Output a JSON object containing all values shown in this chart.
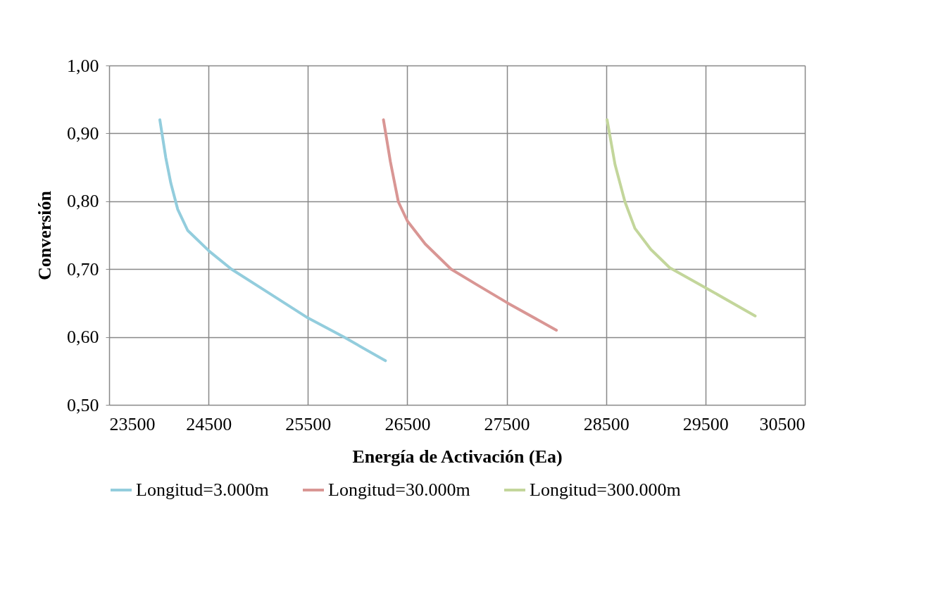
{
  "chart_data": {
    "type": "line",
    "xlabel": "Energía de Activación (Ea)",
    "ylabel": "Conversión",
    "xlim": [
      23500,
      30500
    ],
    "xticks": [
      23500,
      24500,
      25500,
      26500,
      27500,
      28500,
      29500,
      30500
    ],
    "ylim": [
      0.5,
      1.0
    ],
    "yticks": [
      {
        "value": 0.5,
        "label": "0,50"
      },
      {
        "value": 0.6,
        "label": "0,60"
      },
      {
        "value": 0.7,
        "label": "0,70"
      },
      {
        "value": 0.8,
        "label": "0,80"
      },
      {
        "value": 0.9,
        "label": "0,90"
      },
      {
        "value": 1.0,
        "label": "1,00"
      }
    ],
    "grid": true,
    "legend": "bottom",
    "marker": "none",
    "line_style": "solid",
    "series": [
      {
        "name": "Longitud=3.000m",
        "color": "#93cddd",
        "x": [
          24010,
          24070,
          24120,
          24190,
          24290,
          24510,
          24730,
          25040,
          25500,
          25860,
          26280
        ],
        "values": [
          0.92,
          0.864,
          0.827,
          0.788,
          0.757,
          0.726,
          0.7,
          0.671,
          0.628,
          0.6,
          0.565
        ]
      },
      {
        "name": "Longitud=30.000m",
        "color": "#d99694",
        "x": [
          26260,
          26330,
          26410,
          26500,
          26680,
          26940,
          27200,
          27510,
          28000
        ],
        "values": [
          0.92,
          0.858,
          0.799,
          0.771,
          0.737,
          0.7,
          0.677,
          0.65,
          0.61
        ]
      },
      {
        "name": "Longitud=300.000m",
        "color": "#c3d69b",
        "x": [
          28510,
          28590,
          28690,
          28790,
          28950,
          29140,
          29520,
          30000
        ],
        "values": [
          0.92,
          0.854,
          0.799,
          0.76,
          0.729,
          0.702,
          0.671,
          0.631
        ]
      }
    ]
  }
}
